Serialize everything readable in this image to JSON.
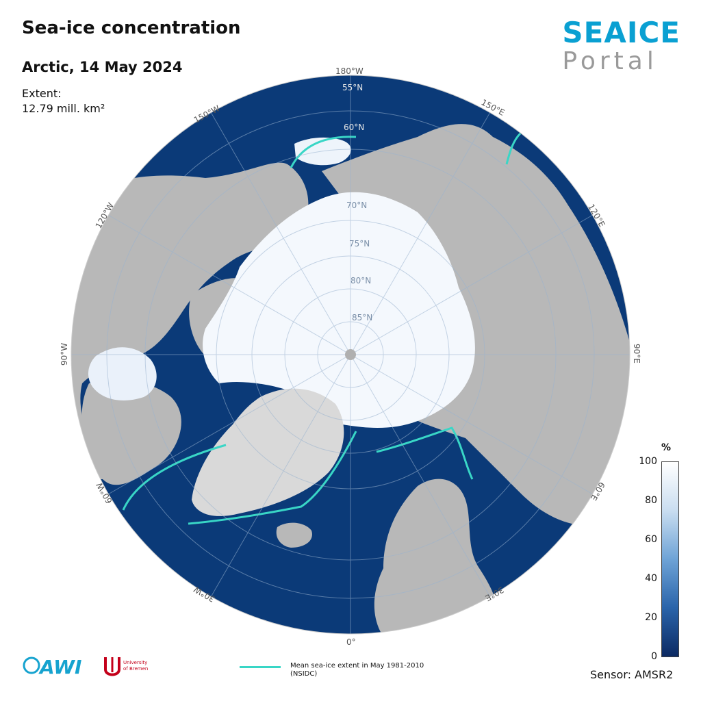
{
  "header": {
    "title": "Sea-ice concentration",
    "subtitle": "Arctic, 14 May 2024",
    "extent_label": "Extent:",
    "extent_value": "12.79 mill. km²"
  },
  "brand": {
    "line1": "SEAICE",
    "line2": "Portal"
  },
  "map": {
    "projection": "polar stereographic, north pole",
    "latitude_labels": [
      "55°N",
      "60°N",
      "70°N",
      "75°N",
      "80°N",
      "85°N"
    ],
    "longitude_labels": {
      "top": "180°W",
      "upper_left": "150°W",
      "upper_right": "150°E",
      "left_upper": "120°W",
      "right_upper": "120°E",
      "left": "90°W",
      "right": "90°E",
      "left_lower": "60°W",
      "right_lower": "60°E",
      "bottom_left": "30°W",
      "bottom_right": "30°E",
      "bottom": "0°"
    },
    "colors": {
      "ocean": "#0b3a78",
      "land": "#b8b8b8",
      "ice": "#ffffff",
      "mean_extent_line": "#39d6c6"
    }
  },
  "legend": {
    "unit": "%",
    "ticks": [
      "100",
      "80",
      "60",
      "40",
      "20",
      "0"
    ],
    "mean_extent": "Mean sea-ice extent in May 1981-2010",
    "mean_extent_source": "(NSIDC)",
    "sensor": "Sensor: AMSR2"
  },
  "logos": {
    "awi": "AWI",
    "ub_line1": "University",
    "ub_line2": "of Bremen"
  }
}
